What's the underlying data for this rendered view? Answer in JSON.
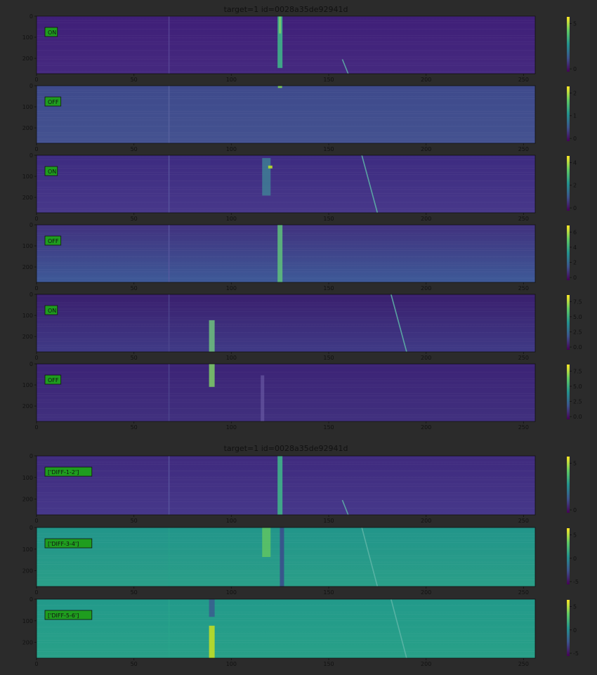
{
  "chart_data": {
    "type": "heatmap",
    "figures": [
      {
        "title": "target=1  id=0028a35de92941d",
        "panels": [
          {
            "label": "ON",
            "xlim": [
              0,
              256
            ],
            "ylim": [
              273,
              0
            ],
            "xticks": [
              "0",
              "50",
              "100",
              "150",
              "200",
              "250"
            ],
            "yticks": [
              "0",
              "100",
              "200"
            ],
            "colorbar_ticks": [
              "5",
              "0"
            ],
            "colorbar_values": [
              5,
              0
            ]
          },
          {
            "label": "OFF",
            "xlim": [
              0,
              256
            ],
            "ylim": [
              273,
              0
            ],
            "xticks": [
              "0",
              "50",
              "100",
              "150",
              "200",
              "250"
            ],
            "yticks": [
              "0",
              "100",
              "200"
            ],
            "colorbar_ticks": [
              "2",
              "1",
              "0"
            ],
            "colorbar_values": [
              2,
              1,
              0
            ]
          },
          {
            "label": "ON",
            "xlim": [
              0,
              256
            ],
            "ylim": [
              273,
              0
            ],
            "xticks": [
              "0",
              "50",
              "100",
              "150",
              "200",
              "250"
            ],
            "yticks": [
              "0",
              "100",
              "200"
            ],
            "colorbar_ticks": [
              "4",
              "2",
              "0"
            ],
            "colorbar_values": [
              4,
              2,
              0
            ]
          },
          {
            "label": "OFF",
            "xlim": [
              0,
              256
            ],
            "ylim": [
              273,
              0
            ],
            "xticks": [
              "0",
              "50",
              "100",
              "150",
              "200",
              "250"
            ],
            "yticks": [
              "0",
              "100",
              "200"
            ],
            "colorbar_ticks": [
              "6",
              "4",
              "2",
              "0"
            ],
            "colorbar_values": [
              6,
              4,
              2,
              0
            ]
          },
          {
            "label": "ON",
            "xlim": [
              0,
              256
            ],
            "ylim": [
              273,
              0
            ],
            "xticks": [
              "0",
              "50",
              "100",
              "150",
              "200",
              "250"
            ],
            "yticks": [
              "0",
              "100",
              "200"
            ],
            "colorbar_ticks": [
              "7.5",
              "5.0",
              "2.5",
              "0.0"
            ],
            "colorbar_values": [
              7.5,
              5.0,
              2.5,
              0.0
            ]
          },
          {
            "label": "OFF",
            "xlim": [
              0,
              256
            ],
            "ylim": [
              273,
              0
            ],
            "xticks": [
              "0",
              "50",
              "100",
              "150",
              "200",
              "250"
            ],
            "yticks": [
              "0",
              "100",
              "200"
            ],
            "colorbar_ticks": [
              "7.5",
              "5.0",
              "2.5",
              "0.0"
            ],
            "colorbar_values": [
              7.5,
              5.0,
              2.5,
              0.0
            ]
          }
        ]
      },
      {
        "title": "target=1  id=0028a35de92941d",
        "panels": [
          {
            "label": "['DIFF-1-2']",
            "xlim": [
              0,
              256
            ],
            "ylim": [
              273,
              0
            ],
            "xticks": [
              "0",
              "50",
              "100",
              "150",
              "200",
              "250"
            ],
            "yticks": [
              "0",
              "100",
              "200"
            ],
            "colorbar_ticks": [
              "5",
              "0"
            ],
            "colorbar_values": [
              5,
              0
            ]
          },
          {
            "label": "['DIFF-3-4']",
            "xlim": [
              0,
              256
            ],
            "ylim": [
              273,
              0
            ],
            "xticks": [
              "0",
              "50",
              "100",
              "150",
              "200",
              "250"
            ],
            "yticks": [
              "0",
              "100",
              "200"
            ],
            "colorbar_ticks": [
              "5",
              "0",
              "-5"
            ],
            "colorbar_values": [
              5,
              0,
              -5
            ]
          },
          {
            "label": "['DIFF-5-6']",
            "xlim": [
              0,
              256
            ],
            "ylim": [
              273,
              0
            ],
            "xticks": [
              "0",
              "50",
              "100",
              "150",
              "200",
              "250"
            ],
            "yticks": [
              "0",
              "100",
              "200"
            ],
            "colorbar_ticks": [
              "5",
              "0",
              "-5"
            ],
            "colorbar_values": [
              5,
              0,
              -5
            ]
          }
        ]
      }
    ],
    "colormap": "viridis"
  }
}
